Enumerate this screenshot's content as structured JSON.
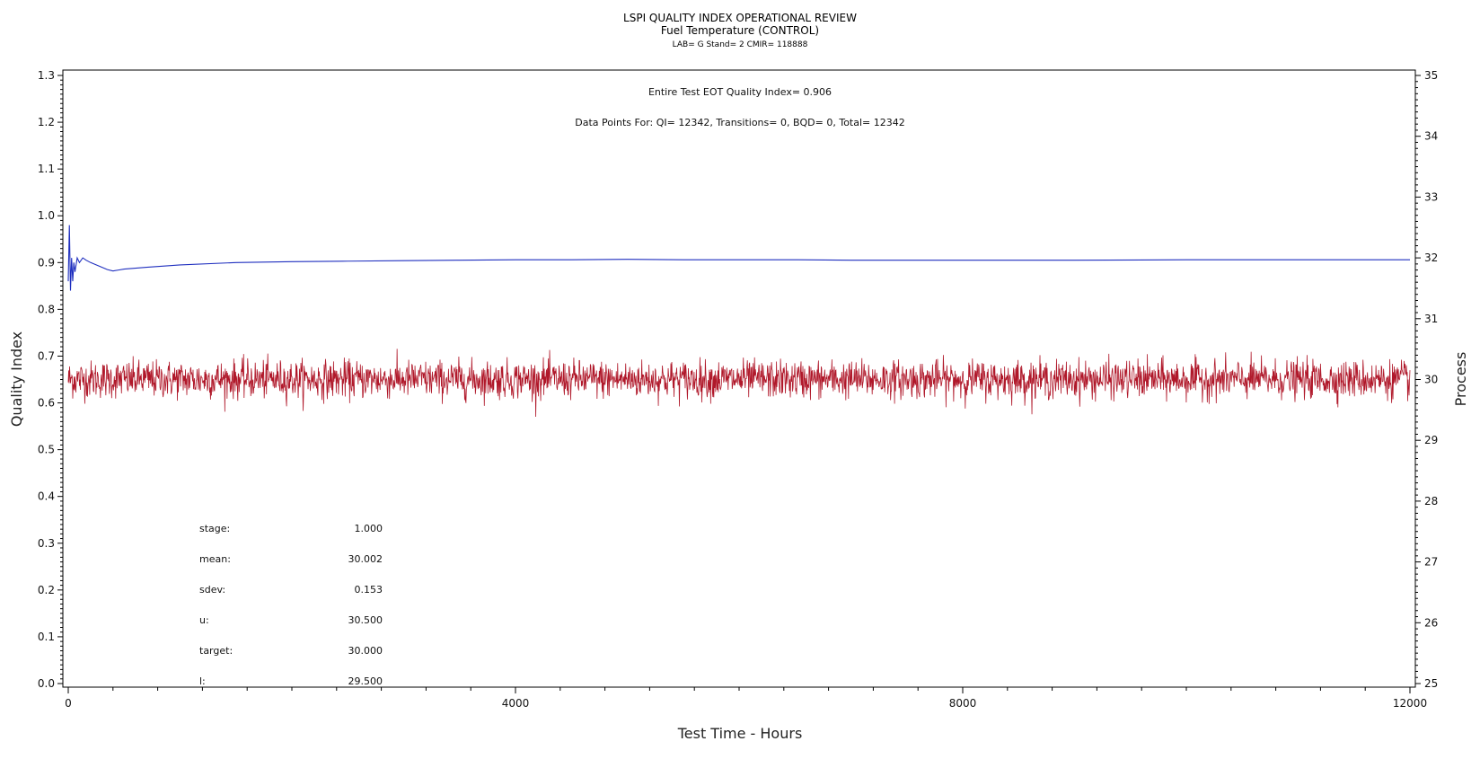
{
  "header": {
    "title": "LSPI QUALITY INDEX OPERATIONAL REVIEW",
    "subtitle": "Fuel Temperature (CONTROL)",
    "meta": "LAB= G Stand= 2 CMIR= 118888"
  },
  "annotations": {
    "eot_index": "Entire Test EOT Quality Index=   0.906",
    "data_points": "Data Points For: QI= 12342, Transitions=      0, BQD=      0, Total= 12342"
  },
  "stats": [
    {
      "label": "stage:",
      "value": "1.000"
    },
    {
      "label": "mean:",
      "value": "30.002"
    },
    {
      "label": "sdev:",
      "value": "0.153"
    },
    {
      "label": "u:",
      "value": "30.500"
    },
    {
      "label": "target:",
      "value": "30.000"
    },
    {
      "label": "l:",
      "value": "29.500"
    }
  ],
  "colors": {
    "quality_index": "#1f2fbf",
    "process": "#b0182a",
    "axes": "#000000"
  },
  "chart_data": {
    "type": "line",
    "xlabel": "Test Time - Hours",
    "ylabel_left": "Quality Index",
    "ylabel_right": "Process",
    "xlim": [
      0,
      12000
    ],
    "x_ticks": [
      0,
      4000,
      8000,
      12000
    ],
    "ylim_left": [
      0.0,
      1.3
    ],
    "y_ticks_left": [
      "0.0",
      "0.1",
      "0.2",
      "0.3",
      "0.4",
      "0.5",
      "0.6",
      "0.7",
      "0.8",
      "0.9",
      "1.0",
      "1.1",
      "1.2",
      "1.3"
    ],
    "ylim_right": [
      25,
      35
    ],
    "y_ticks_right": [
      "25",
      "26",
      "27",
      "28",
      "29",
      "30",
      "31",
      "32",
      "33",
      "34",
      "35"
    ],
    "series": [
      {
        "name": "Quality Index",
        "axis": "left",
        "x": [
          0,
          10,
          20,
          30,
          40,
          50,
          60,
          80,
          100,
          130,
          160,
          200,
          250,
          300,
          350,
          400,
          450,
          500,
          700,
          1000,
          1500,
          2000,
          2500,
          3000,
          3500,
          4000,
          4500,
          5000,
          5500,
          6000,
          6500,
          7000,
          7500,
          8000,
          8500,
          9000,
          10000,
          11000,
          12000
        ],
        "values": [
          0.86,
          0.98,
          0.84,
          0.91,
          0.86,
          0.9,
          0.88,
          0.91,
          0.9,
          0.91,
          0.905,
          0.9,
          0.895,
          0.89,
          0.885,
          0.882,
          0.884,
          0.886,
          0.89,
          0.895,
          0.9,
          0.902,
          0.903,
          0.904,
          0.905,
          0.906,
          0.906,
          0.907,
          0.906,
          0.906,
          0.906,
          0.905,
          0.905,
          0.905,
          0.905,
          0.905,
          0.906,
          0.906,
          0.906
        ]
      },
      {
        "name": "Process",
        "axis": "right",
        "x_range": [
          0,
          12000
        ],
        "points": 12342,
        "mean": 30.002,
        "sdev": 0.153,
        "min": 29.1,
        "max": 30.8
      }
    ]
  }
}
